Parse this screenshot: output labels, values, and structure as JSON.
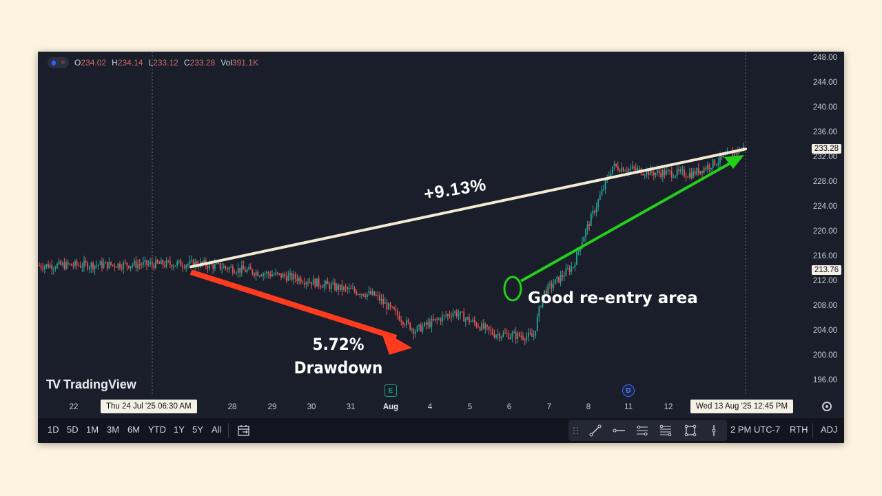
{
  "app": {
    "brand": "TradingView"
  },
  "legend": {
    "o_label": "O",
    "o": "234.02",
    "h_label": "H",
    "h": "234.14",
    "l_label": "L",
    "l": "233.12",
    "c_label": "C",
    "c": "233.28",
    "vol_label": "Vol",
    "vol": "391.1K"
  },
  "yaxis": {
    "ticks": [
      "248.00",
      "244.00",
      "240.00",
      "236.00",
      "232.00",
      "228.00",
      "224.00",
      "220.00",
      "216.00",
      "212.00",
      "208.00",
      "204.00",
      "200.00",
      "196.00"
    ],
    "last_price": "233.28",
    "cursor_price": "213.76"
  },
  "xaxis": {
    "ticks": [
      "22",
      "28",
      "29",
      "30",
      "31",
      "Aug",
      "4",
      "5",
      "6",
      "7",
      "8",
      "11",
      "12"
    ],
    "cursor_start": "Thu 24 Jul '25   06:30 AM",
    "cursor_end": "Wed 13 Aug '25   12:45 PM"
  },
  "events": {
    "earnings": "E",
    "dividend": "D"
  },
  "annotations": {
    "gain": "+9.13%",
    "drawdown_line1": "5.72%",
    "drawdown_line2": "Drawdown",
    "reentry": "Good re-entry area"
  },
  "colors": {
    "up": "#26a69a",
    "down": "#ef5350",
    "gain_line": "#f3ead4",
    "drawdown_arrow": "#ff3b1f",
    "reentry_arrow": "#22d01a",
    "background": "#1a1e2a"
  },
  "toolbar": {
    "timeframes": [
      "1D",
      "5D",
      "1M",
      "3M",
      "6M",
      "YTD",
      "1Y",
      "5Y",
      "All"
    ],
    "time": "2 PM UTC-7",
    "session": "RTH",
    "adj": "ADJ"
  },
  "tool_icons": [
    "drag-handle-icon",
    "trend-line-icon",
    "horizontal-ray-icon",
    "parallel-channel-icon",
    "fib-channel-icon",
    "rectangle-icon",
    "vertical-line-icon"
  ],
  "chart_data": {
    "type": "candlestick",
    "ylim": [
      194,
      250
    ],
    "anchors": [
      {
        "x": "Jul 21",
        "y": 214.5
      },
      {
        "x": "Jul 24",
        "y": 214.8
      },
      {
        "x": "Jul 25",
        "y": 214.3
      },
      {
        "x": "Jul 29",
        "y": 212.5
      },
      {
        "x": "Jul 30",
        "y": 211.0
      },
      {
        "x": "Jul 31",
        "y": 209.7
      },
      {
        "x": "Aug 1",
        "y": 204.0
      },
      {
        "x": "Aug 4",
        "y": 207.0
      },
      {
        "x": "Aug 5",
        "y": 203.5
      },
      {
        "x": "Aug 6",
        "y": 203.0
      },
      {
        "x": "Aug 6",
        "y": 210.0
      },
      {
        "x": "Aug 7",
        "y": 214.5
      },
      {
        "x": "Aug 7",
        "y": 219.0
      },
      {
        "x": "Aug 8",
        "y": 230.5
      },
      {
        "x": "Aug 11",
        "y": 229.5
      },
      {
        "x": "Aug 12",
        "y": 229.3
      },
      {
        "x": "Aug 13",
        "y": 233.5
      }
    ]
  }
}
